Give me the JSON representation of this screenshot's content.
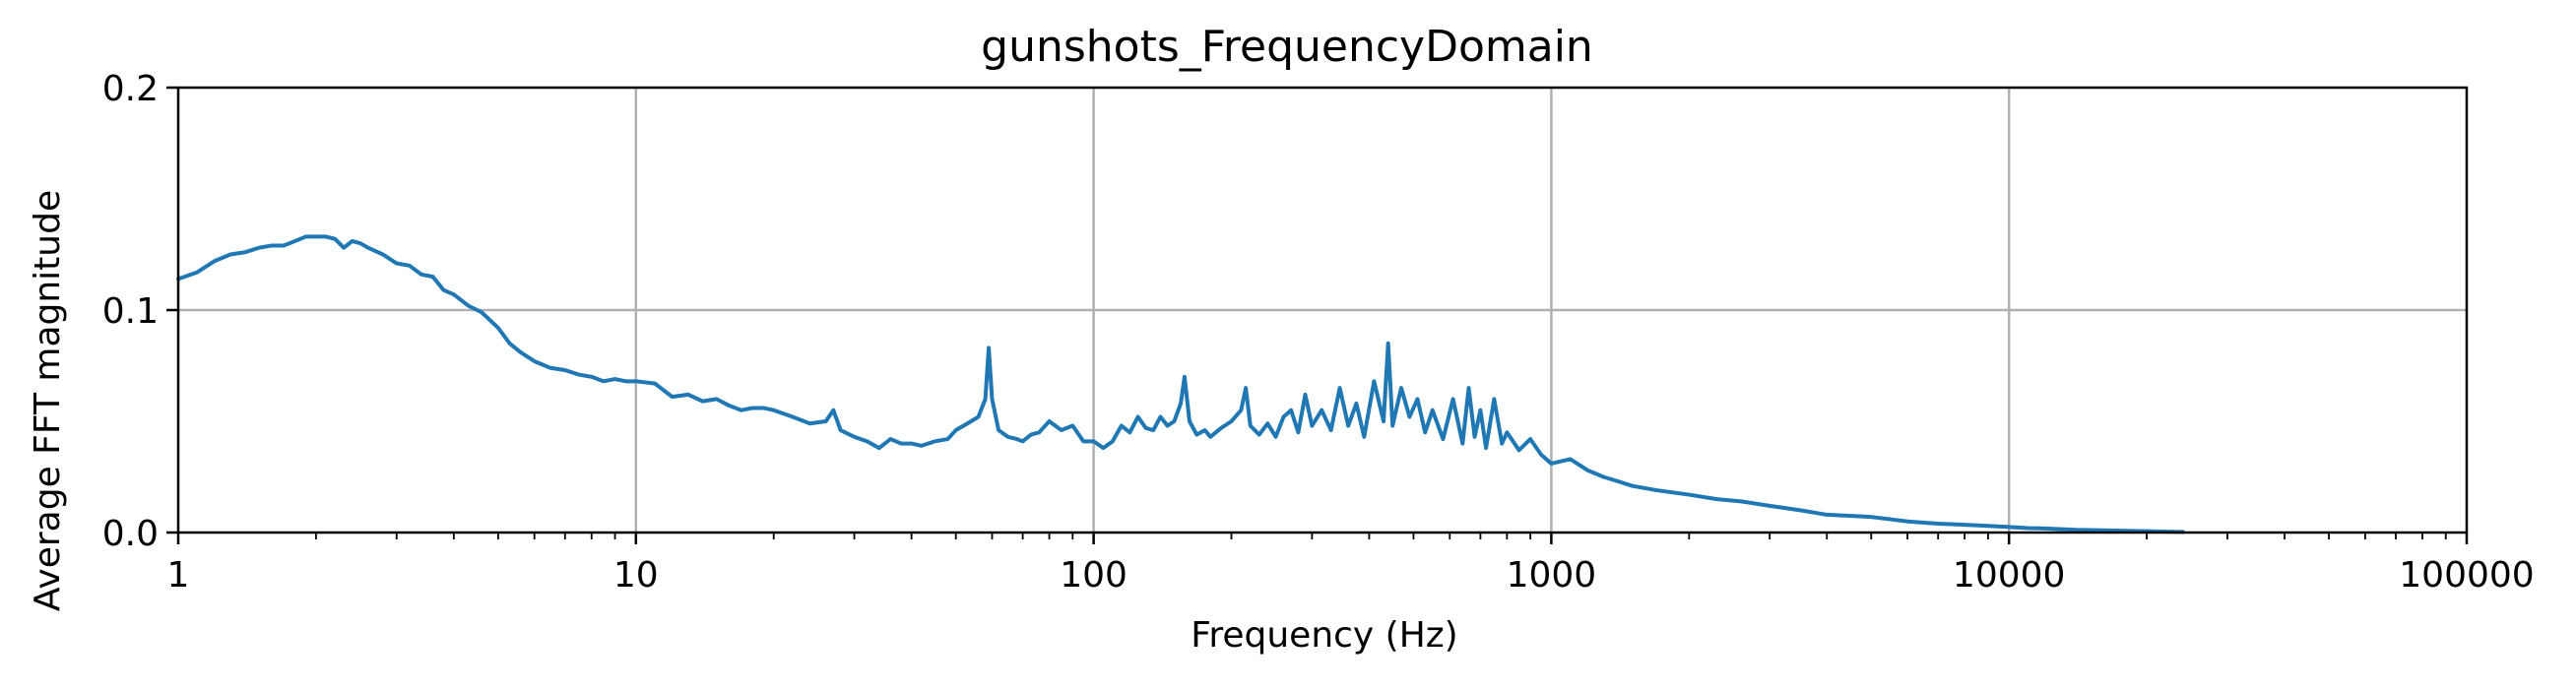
{
  "chart_data": {
    "type": "line",
    "title": "gunshots_FrequencyDomain",
    "xlabel": "Frequency (Hz)",
    "ylabel": "Average FFT magnitude",
    "x_scale": "log",
    "xlim": [
      1,
      100000
    ],
    "ylim": [
      0,
      0.2
    ],
    "x_ticks": [
      "1",
      "10",
      "100",
      "1000",
      "10000",
      "100000"
    ],
    "y_ticks": [
      "0.0",
      "0.1",
      "0.2"
    ],
    "grid": true,
    "legend": "none",
    "series_color": "#1f77b4",
    "series": [
      {
        "x": [
          1,
          1.1,
          1.2,
          1.3,
          1.4,
          1.5,
          1.6,
          1.7,
          1.8,
          1.9,
          2.0,
          2.1,
          2.2,
          2.3,
          2.4,
          2.5,
          2.6,
          2.8,
          3.0,
          3.2,
          3.4,
          3.6,
          3.8,
          4.0,
          4.3,
          4.6,
          5.0,
          5.3,
          5.6,
          6.0,
          6.5,
          7.0,
          7.5,
          8.0,
          8.5,
          9.0,
          9.5,
          10,
          11,
          12,
          13,
          14,
          15,
          16,
          17,
          18,
          19,
          20,
          22,
          24,
          26,
          27,
          28,
          30,
          32,
          34,
          36,
          38,
          40,
          42,
          45,
          48,
          50,
          53,
          56,
          58,
          59,
          60,
          62,
          65,
          68,
          70,
          73,
          76,
          80,
          85,
          90,
          95,
          100,
          105,
          110,
          115,
          120,
          125,
          130,
          135,
          140,
          145,
          150,
          155,
          158,
          162,
          168,
          175,
          180,
          190,
          200,
          210,
          215,
          220,
          230,
          240,
          250,
          260,
          270,
          280,
          290,
          300,
          315,
          330,
          345,
          360,
          375,
          390,
          410,
          430,
          440,
          450,
          470,
          490,
          510,
          530,
          550,
          580,
          610,
          640,
          660,
          680,
          700,
          720,
          750,
          780,
          800,
          850,
          900,
          950,
          1000,
          1100,
          1200,
          1300,
          1400,
          1500,
          1700,
          2000,
          2300,
          2600,
          3000,
          3500,
          4000,
          5000,
          6000,
          7000,
          8000,
          9000,
          10000,
          11000,
          12000,
          13000,
          14000,
          16000,
          18000,
          20000,
          22000,
          24000
        ],
        "y": [
          0.114,
          0.117,
          0.122,
          0.125,
          0.126,
          0.128,
          0.129,
          0.129,
          0.131,
          0.133,
          0.133,
          0.133,
          0.132,
          0.128,
          0.131,
          0.13,
          0.128,
          0.125,
          0.121,
          0.12,
          0.116,
          0.115,
          0.109,
          0.107,
          0.102,
          0.099,
          0.092,
          0.085,
          0.081,
          0.077,
          0.074,
          0.073,
          0.071,
          0.07,
          0.068,
          0.069,
          0.068,
          0.068,
          0.067,
          0.061,
          0.062,
          0.059,
          0.06,
          0.057,
          0.055,
          0.056,
          0.056,
          0.055,
          0.052,
          0.049,
          0.05,
          0.055,
          0.046,
          0.043,
          0.041,
          0.038,
          0.042,
          0.04,
          0.04,
          0.039,
          0.041,
          0.042,
          0.046,
          0.049,
          0.052,
          0.06,
          0.083,
          0.06,
          0.046,
          0.043,
          0.042,
          0.041,
          0.044,
          0.045,
          0.05,
          0.046,
          0.048,
          0.041,
          0.041,
          0.038,
          0.041,
          0.048,
          0.045,
          0.052,
          0.047,
          0.046,
          0.052,
          0.048,
          0.05,
          0.058,
          0.07,
          0.05,
          0.044,
          0.046,
          0.043,
          0.047,
          0.05,
          0.055,
          0.065,
          0.048,
          0.044,
          0.049,
          0.043,
          0.052,
          0.055,
          0.045,
          0.062,
          0.048,
          0.055,
          0.046,
          0.065,
          0.048,
          0.058,
          0.043,
          0.068,
          0.05,
          0.085,
          0.048,
          0.065,
          0.052,
          0.06,
          0.045,
          0.055,
          0.042,
          0.06,
          0.04,
          0.065,
          0.043,
          0.055,
          0.038,
          0.06,
          0.04,
          0.045,
          0.037,
          0.042,
          0.035,
          0.031,
          0.033,
          0.028,
          0.025,
          0.023,
          0.021,
          0.019,
          0.017,
          0.015,
          0.014,
          0.012,
          0.01,
          0.008,
          0.007,
          0.005,
          0.004,
          0.0035,
          0.003,
          0.0025,
          0.002,
          0.0018,
          0.0015,
          0.0012,
          0.001,
          0.0008,
          0.0006,
          0.0004,
          0.0003
        ]
      }
    ]
  }
}
